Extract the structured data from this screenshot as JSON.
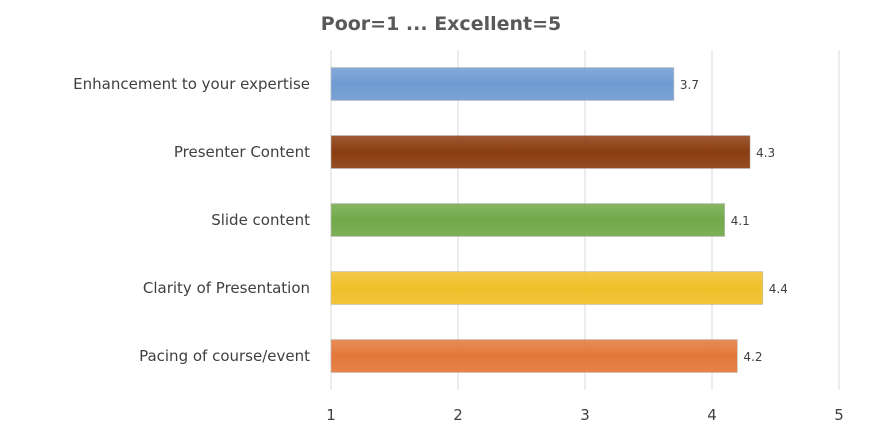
{
  "chart_data": {
    "type": "bar",
    "orientation": "horizontal",
    "title": "Poor=1 ... Excellent=5",
    "xlabel": "",
    "ylabel": "",
    "categories": [
      "Enhancement to your expertise",
      "Presenter Content",
      "Slide content",
      "Clarity of Presentation",
      "Pacing of course/event"
    ],
    "values": [
      3.7,
      4.3,
      4.1,
      4.4,
      4.2
    ],
    "data_labels": [
      "3.7",
      "4.3",
      "4.1",
      "4.4",
      "4.2"
    ],
    "colors": [
      "#6f9bd2",
      "#8b3d10",
      "#72a94a",
      "#f0c02a",
      "#e4783a"
    ],
    "xlim": [
      1,
      5
    ],
    "ticks": [
      "1",
      "2",
      "3",
      "4",
      "5"
    ],
    "grid": true,
    "legend": "none"
  }
}
